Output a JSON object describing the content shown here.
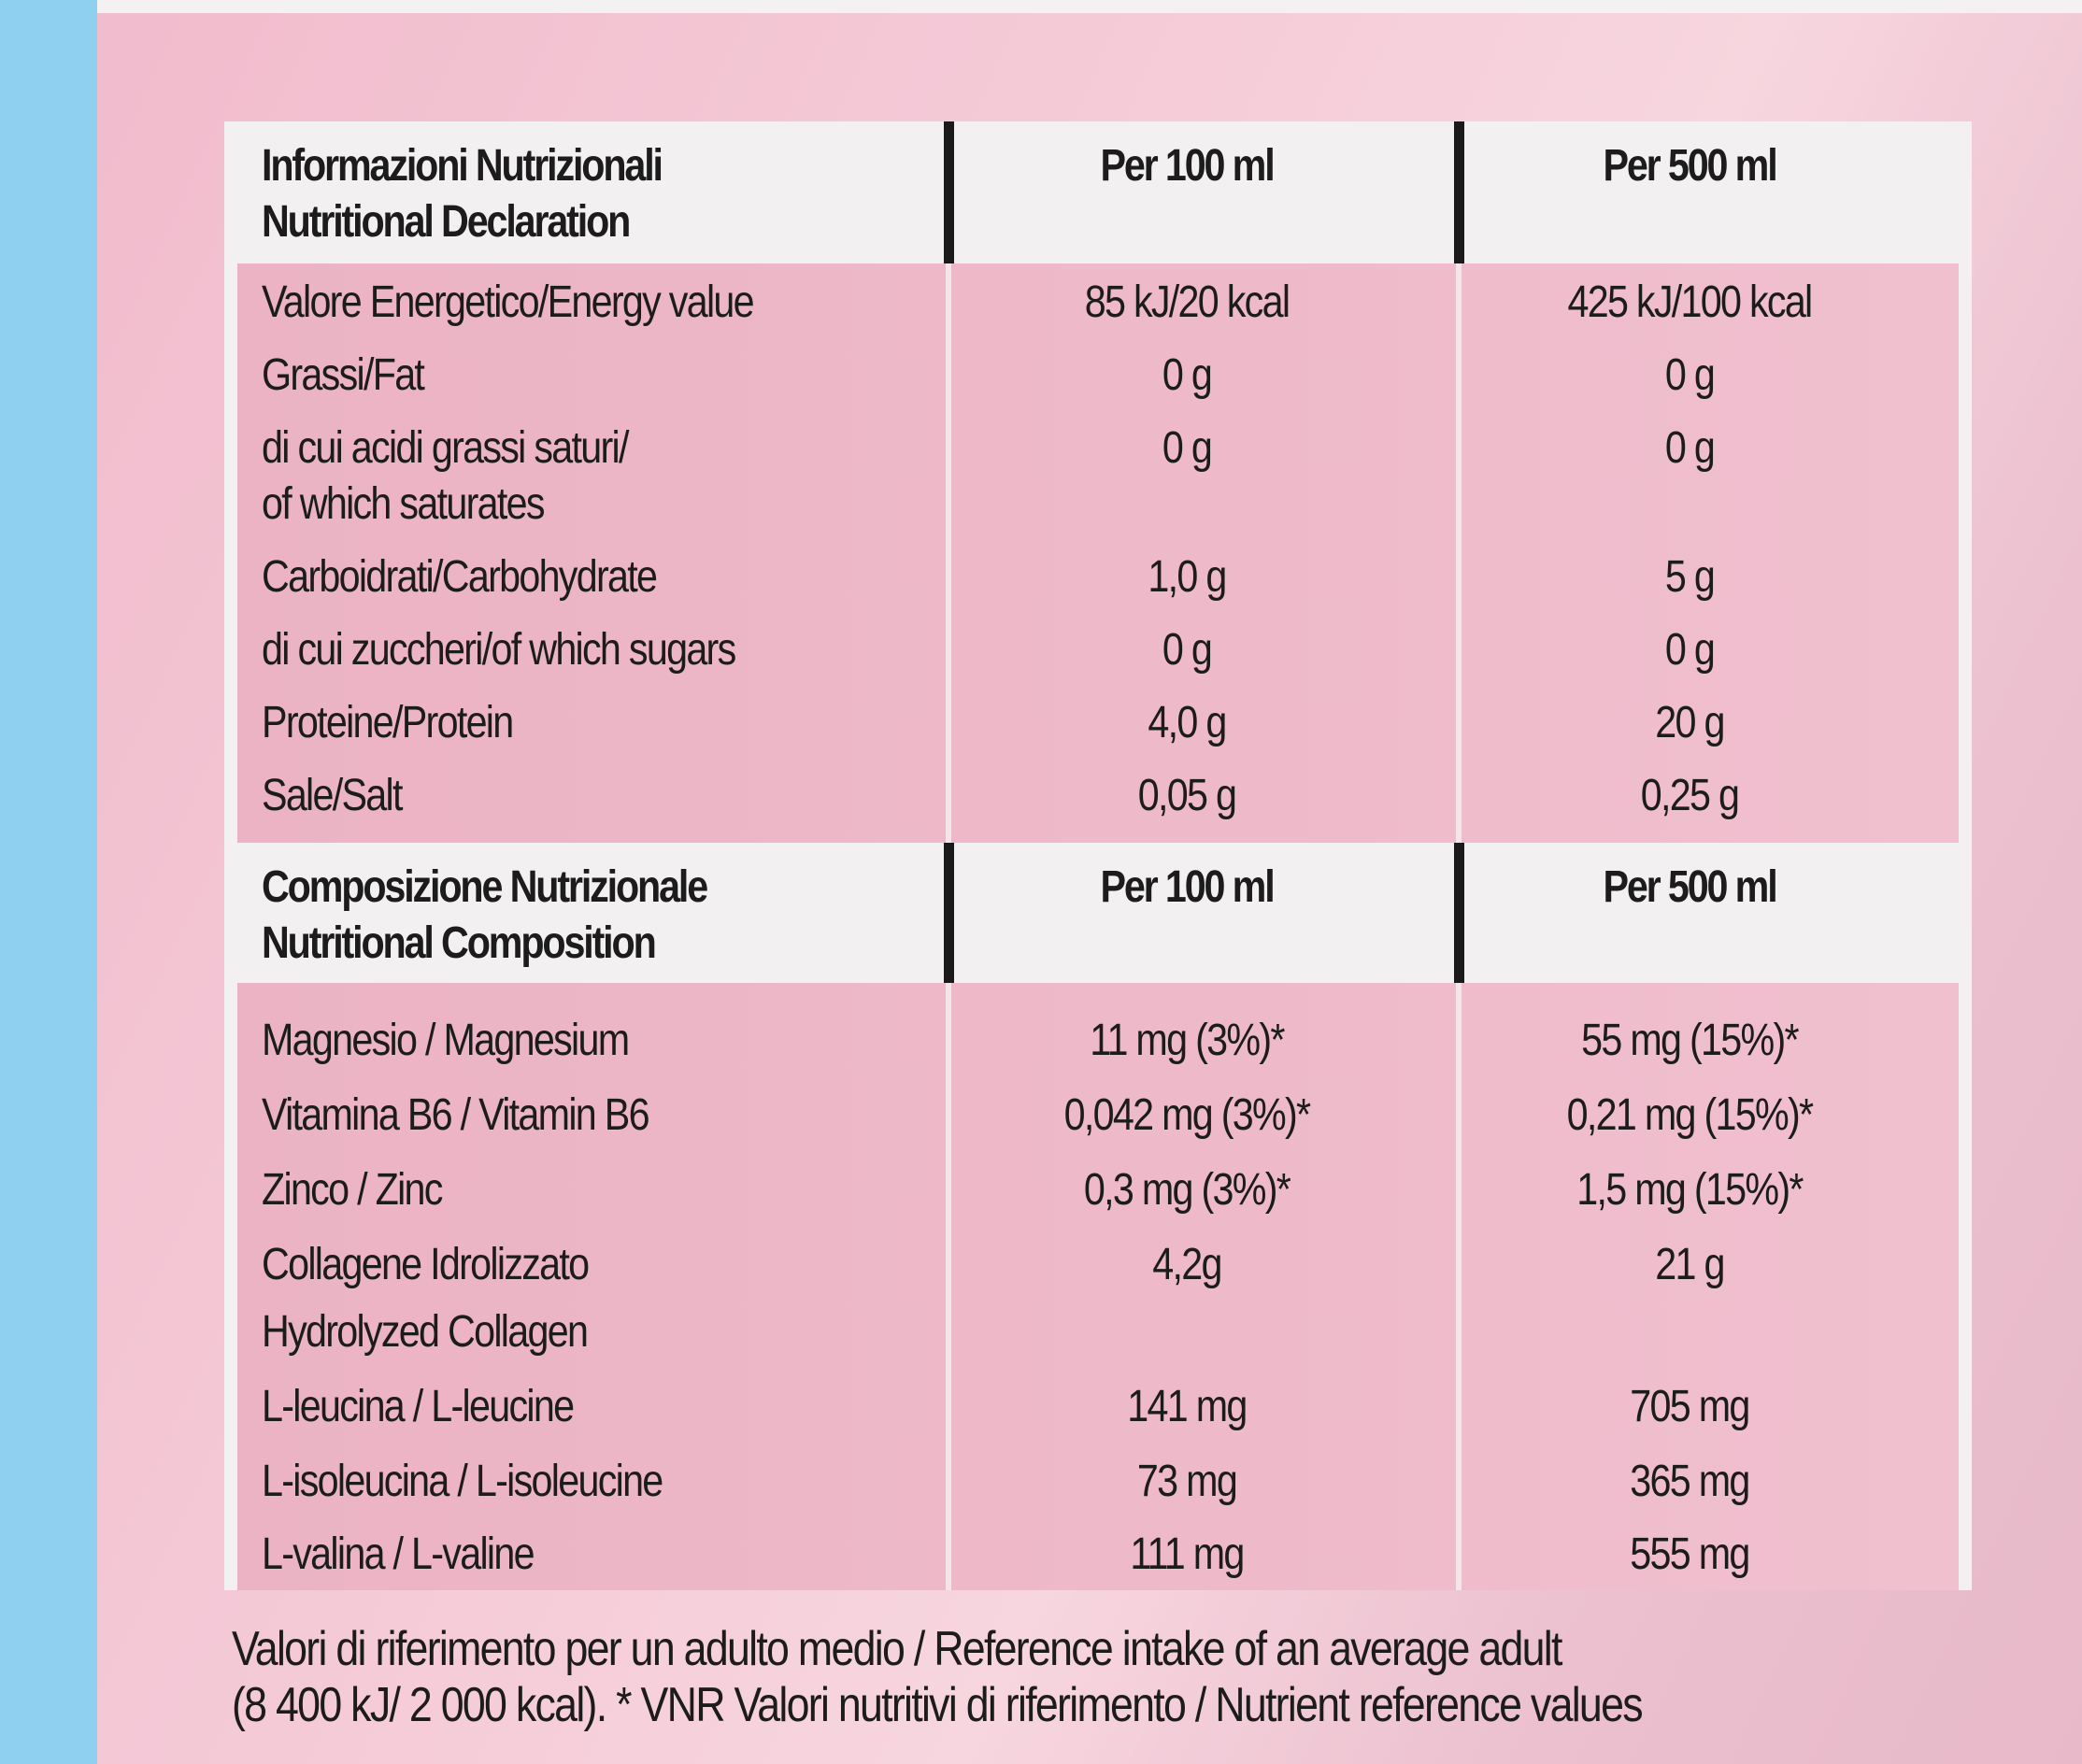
{
  "declaration": {
    "title_it": "Informazioni Nutrizionali",
    "title_en": "Nutritional Declaration",
    "col_100": "Per 100 ml",
    "col_500": "Per 500 ml",
    "rows": [
      {
        "label": "Valore Energetico/Energy value",
        "v100": "85 kJ/20 kcal",
        "v500": "425 kJ/100 kcal"
      },
      {
        "label": "Grassi/Fat",
        "v100": "0 g",
        "v500": "0 g"
      },
      {
        "label": "di cui acidi grassi saturi/",
        "label2": "of which saturates",
        "v100": "0 g",
        "v500": "0 g"
      },
      {
        "label": "Carboidrati/Carbohydrate",
        "v100": "1,0 g",
        "v500": "5 g"
      },
      {
        "label": "di cui zuccheri/of which sugars",
        "v100": "0 g",
        "v500": "0 g"
      },
      {
        "label": "Proteine/Protein",
        "v100": "4,0 g",
        "v500": "20 g"
      },
      {
        "label": "Sale/Salt",
        "v100": "0,05 g",
        "v500": "0,25 g"
      }
    ]
  },
  "composition": {
    "title_it": "Composizione Nutrizionale",
    "title_en": "Nutritional Composition",
    "col_100": "Per 100 ml",
    "col_500": "Per 500 ml",
    "rows": [
      {
        "label": "Magnesio / Magnesium",
        "v100": "11 mg (3%)*",
        "v500": "55 mg (15%)*"
      },
      {
        "label": "Vitamina B6 / Vitamin B6",
        "v100": "0,042 mg (3%)*",
        "v500": "0,21 mg (15%)*"
      },
      {
        "label": "Zinco / Zinc",
        "v100": "0,3 mg (3%)*",
        "v500": "1,5 mg (15%)*"
      },
      {
        "label": "Collagene Idrolizzato",
        "label2": "Hydrolyzed Collagen",
        "v100": "4,2g",
        "v500": "21 g"
      },
      {
        "label": "L-leucina / L-leucine",
        "v100": "141 mg",
        "v500": "705 mg"
      },
      {
        "label": "L-isoleucina / L-isoleucine",
        "v100": "73 mg",
        "v500": "365 mg"
      },
      {
        "label": "L-valina / L-valine",
        "v100": "111 mg",
        "v500": "555 mg"
      }
    ]
  },
  "footer": {
    "line1": "Valori di riferimento per un adulto medio / Reference intake of an average adult",
    "line2": "(8 400 kJ/ 2 000 kcal). * VNR Valori nutritivi di riferimento / Nutrient reference values"
  }
}
